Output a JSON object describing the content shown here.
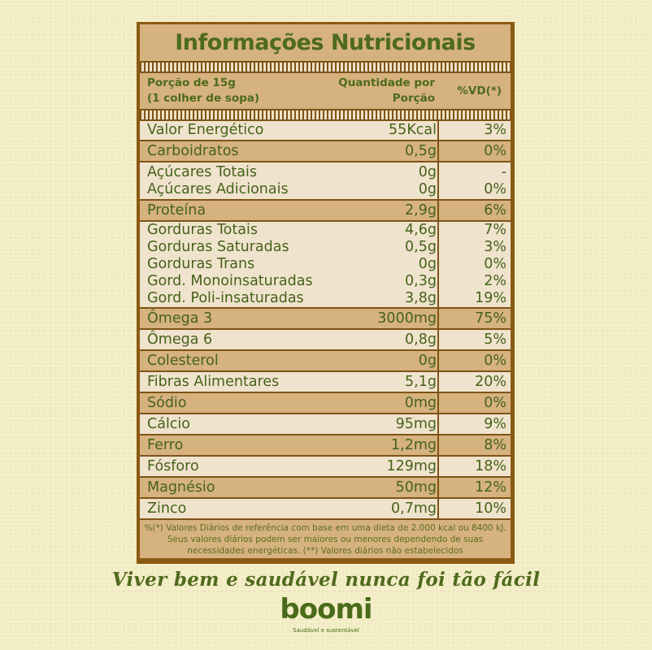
{
  "title": "Informações Nutricionais",
  "header": {
    "portion_line1": "Porção de 15g",
    "portion_line2": "(1 colher de sopa)",
    "quantity_line1": "Quantidade por",
    "quantity_line2": "Porção",
    "vd": "%VD(*)"
  },
  "rows": [
    {
      "shade": "light",
      "items": [
        {
          "name": "Valor Energético",
          "qty": "55Kcal",
          "vd": "3%"
        }
      ]
    },
    {
      "shade": "dark",
      "items": [
        {
          "name": "Carboidratos",
          "qty": "0,5g",
          "vd": "0%"
        }
      ]
    },
    {
      "shade": "light",
      "items": [
        {
          "name": "Açúcares Totais",
          "qty": "0g",
          "vd": "-"
        },
        {
          "name": "Açúcares Adicionais",
          "qty": "0g",
          "vd": "0%"
        }
      ]
    },
    {
      "shade": "dark",
      "items": [
        {
          "name": "Proteína",
          "qty": "2,9g",
          "vd": "6%"
        }
      ]
    },
    {
      "shade": "light",
      "items": [
        {
          "name": "Gorduras Totais",
          "qty": "4,6g",
          "vd": "7%"
        },
        {
          "name": "Gorduras Saturadas",
          "qty": "0,5g",
          "vd": "3%"
        },
        {
          "name": "Gorduras Trans",
          "qty": "0g",
          "vd": "0%"
        },
        {
          "name": "Gord. Monoinsaturadas",
          "qty": "0,3g",
          "vd": "2%"
        },
        {
          "name": "Gord. Poli-insaturadas",
          "qty": "3,8g",
          "vd": "19%"
        }
      ]
    },
    {
      "shade": "dark",
      "items": [
        {
          "name": "Ômega 3",
          "qty": "3000mg",
          "vd": "75%"
        }
      ]
    },
    {
      "shade": "light",
      "items": [
        {
          "name": "Ômega 6",
          "qty": "0,8g",
          "vd": "5%"
        }
      ]
    },
    {
      "shade": "dark",
      "items": [
        {
          "name": "Colesterol",
          "qty": "0g",
          "vd": "0%"
        }
      ]
    },
    {
      "shade": "light",
      "items": [
        {
          "name": "Fibras Alimentares",
          "qty": "5,1g",
          "vd": "20%"
        }
      ]
    },
    {
      "shade": "dark",
      "items": [
        {
          "name": "Sódio",
          "qty": "0mg",
          "vd": "0%"
        }
      ]
    },
    {
      "shade": "light",
      "items": [
        {
          "name": "Cálcio",
          "qty": "95mg",
          "vd": "9%"
        }
      ]
    },
    {
      "shade": "dark",
      "items": [
        {
          "name": "Ferro",
          "qty": "1,2mg",
          "vd": "8%"
        }
      ]
    },
    {
      "shade": "light",
      "items": [
        {
          "name": "Fósforo",
          "qty": "129mg",
          "vd": "18%"
        }
      ]
    },
    {
      "shade": "dark",
      "items": [
        {
          "name": "Magnésio",
          "qty": "50mg",
          "vd": "12%"
        }
      ]
    },
    {
      "shade": "light",
      "items": [
        {
          "name": "Zinco",
          "qty": "0,7mg",
          "vd": "10%"
        }
      ]
    }
  ],
  "footnote": {
    "line1": "%(*) Valores Diários de referência com base em uma dieta de 2.000 kcal ou 8400 kJ.",
    "line2": "Seus valores diários podem ser maiores ou menores dependendo de suas",
    "line3": "necessidades energéticas. (**) Valores diários não estabelecidos"
  },
  "slogan": "Viver bem e saudável nunca foi tão fácil",
  "brand": {
    "logo": "boomi",
    "tagline": "Saudável e sustentável"
  },
  "colors": {
    "background": "#f4efc9",
    "frame": "#8a5a12",
    "table_dark": "#d6b27f",
    "table_light": "#f0e3cd",
    "text_green": "#4d6b1c"
  }
}
